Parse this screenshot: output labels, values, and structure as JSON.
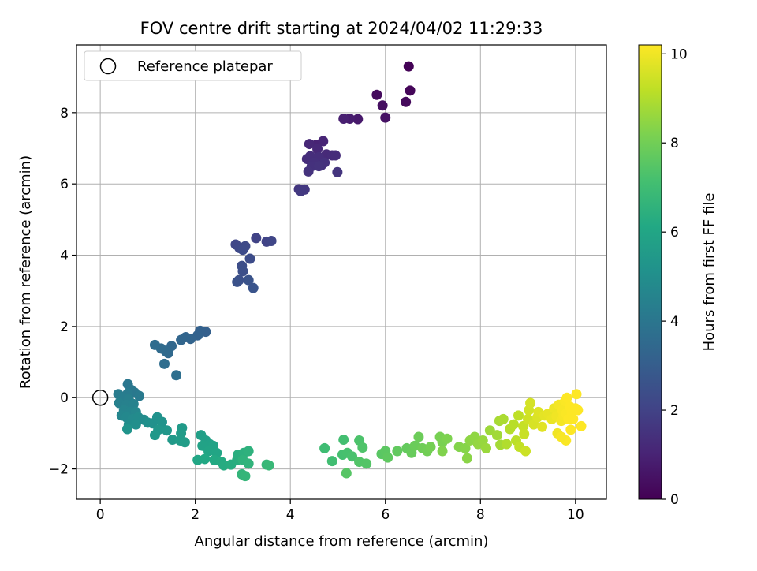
{
  "chart_data": {
    "type": "scatter",
    "title": "FOV centre drift starting at 2024/04/02 11:29:33",
    "xlabel": "Angular distance from reference (arcmin)",
    "ylabel": "Rotation from reference (arcmin)",
    "xlim": [
      -0.5,
      10.65
    ],
    "ylim": [
      -2.85,
      9.9
    ],
    "xticks": [
      0,
      2,
      4,
      6,
      8,
      10
    ],
    "yticks": [
      -2,
      0,
      2,
      4,
      6,
      8
    ],
    "grid": true,
    "legend": {
      "placement": "top-left",
      "entries": [
        {
          "label": "Reference platepar"
        }
      ]
    },
    "reference_point": {
      "x": 0,
      "y": 0
    },
    "colorbar": {
      "label": "Hours from first FF file",
      "range": [
        0,
        10.2
      ],
      "ticks": [
        0,
        2,
        4,
        6,
        8,
        10
      ],
      "colormap": "viridis"
    },
    "points": [
      {
        "x": 6.49,
        "y": 9.3,
        "c": 0.05
      },
      {
        "x": 6.52,
        "y": 8.62,
        "c": 0.15
      },
      {
        "x": 5.82,
        "y": 8.5,
        "c": 0.3
      },
      {
        "x": 5.94,
        "y": 8.2,
        "c": 0.4
      },
      {
        "x": 6.43,
        "y": 8.3,
        "c": 0.25
      },
      {
        "x": 6.0,
        "y": 7.86,
        "c": 0.5
      },
      {
        "x": 5.42,
        "y": 7.82,
        "c": 0.7
      },
      {
        "x": 5.25,
        "y": 7.83,
        "c": 0.8
      },
      {
        "x": 5.12,
        "y": 7.83,
        "c": 0.9
      },
      {
        "x": 4.55,
        "y": 7.1,
        "c": 1.0
      },
      {
        "x": 4.69,
        "y": 7.2,
        "c": 1.05
      },
      {
        "x": 4.4,
        "y": 7.12,
        "c": 1.1
      },
      {
        "x": 4.57,
        "y": 6.98,
        "c": 1.15
      },
      {
        "x": 4.76,
        "y": 6.83,
        "c": 1.2
      },
      {
        "x": 4.88,
        "y": 6.8,
        "c": 1.25
      },
      {
        "x": 4.95,
        "y": 6.8,
        "c": 1.3
      },
      {
        "x": 4.35,
        "y": 6.7,
        "c": 1.3
      },
      {
        "x": 4.42,
        "y": 6.78,
        "c": 1.35
      },
      {
        "x": 4.6,
        "y": 6.75,
        "c": 1.35
      },
      {
        "x": 4.5,
        "y": 6.6,
        "c": 1.4
      },
      {
        "x": 4.65,
        "y": 6.52,
        "c": 1.4
      },
      {
        "x": 4.72,
        "y": 6.6,
        "c": 1.45
      },
      {
        "x": 4.45,
        "y": 6.5,
        "c": 1.45
      },
      {
        "x": 4.6,
        "y": 6.5,
        "c": 1.5
      },
      {
        "x": 4.38,
        "y": 6.35,
        "c": 1.5
      },
      {
        "x": 4.99,
        "y": 6.33,
        "c": 1.55
      },
      {
        "x": 4.18,
        "y": 5.85,
        "c": 1.6
      },
      {
        "x": 4.3,
        "y": 5.84,
        "c": 1.65
      },
      {
        "x": 4.22,
        "y": 5.8,
        "c": 1.7
      },
      {
        "x": 3.28,
        "y": 4.48,
        "c": 2.0
      },
      {
        "x": 3.5,
        "y": 4.38,
        "c": 2.05
      },
      {
        "x": 3.6,
        "y": 4.4,
        "c": 2.1
      },
      {
        "x": 2.85,
        "y": 4.3,
        "c": 2.15
      },
      {
        "x": 2.93,
        "y": 4.2,
        "c": 2.2
      },
      {
        "x": 3.05,
        "y": 4.25,
        "c": 2.25
      },
      {
        "x": 3.0,
        "y": 4.15,
        "c": 2.3
      },
      {
        "x": 3.15,
        "y": 3.9,
        "c": 2.35
      },
      {
        "x": 2.98,
        "y": 3.7,
        "c": 2.4
      },
      {
        "x": 3.0,
        "y": 3.55,
        "c": 2.45
      },
      {
        "x": 2.92,
        "y": 3.3,
        "c": 2.5
      },
      {
        "x": 2.88,
        "y": 3.25,
        "c": 2.55
      },
      {
        "x": 3.12,
        "y": 3.3,
        "c": 2.6
      },
      {
        "x": 3.22,
        "y": 3.08,
        "c": 2.65
      },
      {
        "x": 2.22,
        "y": 1.85,
        "c": 3.1
      },
      {
        "x": 2.1,
        "y": 1.88,
        "c": 3.15
      },
      {
        "x": 2.05,
        "y": 1.75,
        "c": 3.2
      },
      {
        "x": 1.9,
        "y": 1.65,
        "c": 3.25
      },
      {
        "x": 1.8,
        "y": 1.7,
        "c": 3.3
      },
      {
        "x": 1.7,
        "y": 1.62,
        "c": 3.35
      },
      {
        "x": 1.5,
        "y": 1.45,
        "c": 3.4
      },
      {
        "x": 1.43,
        "y": 1.25,
        "c": 3.45
      },
      {
        "x": 1.38,
        "y": 1.3,
        "c": 3.5
      },
      {
        "x": 1.28,
        "y": 1.38,
        "c": 3.55
      },
      {
        "x": 1.15,
        "y": 1.48,
        "c": 3.6
      },
      {
        "x": 1.35,
        "y": 0.95,
        "c": 3.65
      },
      {
        "x": 1.6,
        "y": 0.63,
        "c": 3.7
      },
      {
        "x": 0.58,
        "y": 0.38,
        "c": 4.0
      },
      {
        "x": 0.65,
        "y": 0.22,
        "c": 4.05
      },
      {
        "x": 0.72,
        "y": 0.15,
        "c": 4.1
      },
      {
        "x": 0.82,
        "y": 0.05,
        "c": 4.15
      },
      {
        "x": 0.58,
        "y": 0.12,
        "c": 4.2
      },
      {
        "x": 0.38,
        "y": 0.1,
        "c": 4.25
      },
      {
        "x": 0.48,
        "y": 0.0,
        "c": 4.3
      },
      {
        "x": 0.6,
        "y": -0.05,
        "c": 4.35
      },
      {
        "x": 0.4,
        "y": -0.15,
        "c": 4.4
      },
      {
        "x": 0.55,
        "y": -0.2,
        "c": 4.45
      },
      {
        "x": 0.7,
        "y": -0.18,
        "c": 4.5
      },
      {
        "x": 0.5,
        "y": -0.35,
        "c": 4.55
      },
      {
        "x": 0.62,
        "y": -0.4,
        "c": 4.6
      },
      {
        "x": 0.45,
        "y": -0.5,
        "c": 4.65
      },
      {
        "x": 0.75,
        "y": -0.4,
        "c": 4.7
      },
      {
        "x": 0.55,
        "y": -0.55,
        "c": 4.75
      },
      {
        "x": 0.68,
        "y": -0.6,
        "c": 4.8
      },
      {
        "x": 0.8,
        "y": -0.55,
        "c": 4.85
      },
      {
        "x": 0.92,
        "y": -0.62,
        "c": 4.9
      },
      {
        "x": 0.6,
        "y": -0.75,
        "c": 4.95
      },
      {
        "x": 0.75,
        "y": -0.75,
        "c": 5.0
      },
      {
        "x": 1.0,
        "y": -0.7,
        "c": 5.05
      },
      {
        "x": 1.1,
        "y": -0.72,
        "c": 5.1
      },
      {
        "x": 1.2,
        "y": -0.55,
        "c": 5.15
      },
      {
        "x": 1.3,
        "y": -0.68,
        "c": 5.2
      },
      {
        "x": 0.57,
        "y": -0.88,
        "c": 5.25
      },
      {
        "x": 1.22,
        "y": -0.9,
        "c": 5.3
      },
      {
        "x": 1.4,
        "y": -0.92,
        "c": 5.35
      },
      {
        "x": 1.15,
        "y": -1.05,
        "c": 5.4
      },
      {
        "x": 1.52,
        "y": -1.18,
        "c": 5.45
      },
      {
        "x": 1.72,
        "y": -0.85,
        "c": 5.5
      },
      {
        "x": 1.7,
        "y": -1.0,
        "c": 5.55
      },
      {
        "x": 1.68,
        "y": -1.2,
        "c": 5.6
      },
      {
        "x": 1.78,
        "y": -1.25,
        "c": 5.65
      },
      {
        "x": 2.12,
        "y": -1.05,
        "c": 5.7
      },
      {
        "x": 2.22,
        "y": -1.2,
        "c": 5.75
      },
      {
        "x": 2.3,
        "y": -1.3,
        "c": 5.8
      },
      {
        "x": 2.15,
        "y": -1.35,
        "c": 5.85
      },
      {
        "x": 2.38,
        "y": -1.35,
        "c": 5.9
      },
      {
        "x": 2.28,
        "y": -1.5,
        "c": 5.95
      },
      {
        "x": 2.45,
        "y": -1.55,
        "c": 6.0
      },
      {
        "x": 2.05,
        "y": -1.75,
        "c": 6.05
      },
      {
        "x": 2.2,
        "y": -1.72,
        "c": 6.1
      },
      {
        "x": 2.4,
        "y": -1.75,
        "c": 6.15
      },
      {
        "x": 2.55,
        "y": -1.8,
        "c": 6.2
      },
      {
        "x": 2.6,
        "y": -1.9,
        "c": 6.25
      },
      {
        "x": 2.75,
        "y": -1.88,
        "c": 6.3
      },
      {
        "x": 2.88,
        "y": -1.75,
        "c": 6.35
      },
      {
        "x": 2.9,
        "y": -1.6,
        "c": 6.4
      },
      {
        "x": 3.02,
        "y": -1.55,
        "c": 6.45
      },
      {
        "x": 3.12,
        "y": -1.5,
        "c": 6.5
      },
      {
        "x": 3.0,
        "y": -1.75,
        "c": 6.55
      },
      {
        "x": 3.12,
        "y": -1.85,
        "c": 6.6
      },
      {
        "x": 2.98,
        "y": -2.15,
        "c": 6.65
      },
      {
        "x": 3.05,
        "y": -2.2,
        "c": 6.7
      },
      {
        "x": 3.5,
        "y": -1.88,
        "c": 6.75
      },
      {
        "x": 3.55,
        "y": -1.9,
        "c": 6.8
      },
      {
        "x": 4.72,
        "y": -1.42,
        "c": 7.0
      },
      {
        "x": 4.88,
        "y": -1.78,
        "c": 7.05
      },
      {
        "x": 5.12,
        "y": -1.18,
        "c": 7.1
      },
      {
        "x": 5.1,
        "y": -1.6,
        "c": 7.15
      },
      {
        "x": 5.2,
        "y": -1.55,
        "c": 7.2
      },
      {
        "x": 5.3,
        "y": -1.65,
        "c": 7.25
      },
      {
        "x": 5.45,
        "y": -1.2,
        "c": 7.3
      },
      {
        "x": 5.52,
        "y": -1.4,
        "c": 7.35
      },
      {
        "x": 5.45,
        "y": -1.8,
        "c": 7.4
      },
      {
        "x": 5.6,
        "y": -1.85,
        "c": 7.45
      },
      {
        "x": 5.18,
        "y": -2.12,
        "c": 7.5
      },
      {
        "x": 5.92,
        "y": -1.58,
        "c": 7.55
      },
      {
        "x": 6.0,
        "y": -1.5,
        "c": 7.6
      },
      {
        "x": 6.05,
        "y": -1.68,
        "c": 7.65
      },
      {
        "x": 6.25,
        "y": -1.5,
        "c": 7.7
      },
      {
        "x": 6.45,
        "y": -1.42,
        "c": 7.75
      },
      {
        "x": 6.55,
        "y": -1.55,
        "c": 7.8
      },
      {
        "x": 6.62,
        "y": -1.35,
        "c": 7.85
      },
      {
        "x": 6.7,
        "y": -1.1,
        "c": 7.9
      },
      {
        "x": 6.78,
        "y": -1.42,
        "c": 7.95
      },
      {
        "x": 6.88,
        "y": -1.5,
        "c": 8.0
      },
      {
        "x": 6.95,
        "y": -1.38,
        "c": 8.05
      },
      {
        "x": 7.15,
        "y": -1.1,
        "c": 8.1
      },
      {
        "x": 7.2,
        "y": -1.25,
        "c": 8.15
      },
      {
        "x": 7.3,
        "y": -1.15,
        "c": 8.2
      },
      {
        "x": 7.2,
        "y": -1.5,
        "c": 8.25
      },
      {
        "x": 7.55,
        "y": -1.38,
        "c": 8.3
      },
      {
        "x": 7.68,
        "y": -1.42,
        "c": 8.35
      },
      {
        "x": 7.72,
        "y": -1.7,
        "c": 8.4
      },
      {
        "x": 7.78,
        "y": -1.2,
        "c": 8.45
      },
      {
        "x": 7.88,
        "y": -1.1,
        "c": 8.5
      },
      {
        "x": 7.95,
        "y": -1.3,
        "c": 8.55
      },
      {
        "x": 8.05,
        "y": -1.2,
        "c": 8.6
      },
      {
        "x": 8.12,
        "y": -1.42,
        "c": 8.65
      },
      {
        "x": 8.2,
        "y": -0.92,
        "c": 8.7
      },
      {
        "x": 8.35,
        "y": -1.05,
        "c": 8.75
      },
      {
        "x": 8.42,
        "y": -1.32,
        "c": 8.8
      },
      {
        "x": 8.4,
        "y": -0.65,
        "c": 8.85
      },
      {
        "x": 8.48,
        "y": -0.6,
        "c": 8.9
      },
      {
        "x": 8.55,
        "y": -1.3,
        "c": 9.0
      },
      {
        "x": 8.62,
        "y": -0.88,
        "c": 9.05
      },
      {
        "x": 8.7,
        "y": -0.75,
        "c": 9.1
      },
      {
        "x": 8.75,
        "y": -1.2,
        "c": 9.15
      },
      {
        "x": 8.8,
        "y": -0.5,
        "c": 9.2
      },
      {
        "x": 8.82,
        "y": -1.38,
        "c": 9.25
      },
      {
        "x": 8.9,
        "y": -0.8,
        "c": 9.3
      },
      {
        "x": 8.92,
        "y": -1.02,
        "c": 9.35
      },
      {
        "x": 8.95,
        "y": -1.5,
        "c": 9.4
      },
      {
        "x": 9.0,
        "y": -0.6,
        "c": 9.45
      },
      {
        "x": 9.02,
        "y": -0.35,
        "c": 9.5
      },
      {
        "x": 9.05,
        "y": -0.15,
        "c": 9.55
      },
      {
        "x": 9.12,
        "y": -0.75,
        "c": 9.6
      },
      {
        "x": 9.2,
        "y": -0.55,
        "c": 9.65
      },
      {
        "x": 9.22,
        "y": -0.4,
        "c": 9.7
      },
      {
        "x": 9.3,
        "y": -0.82,
        "c": 9.75
      },
      {
        "x": 9.35,
        "y": -0.5,
        "c": 9.8
      },
      {
        "x": 9.42,
        "y": -0.45,
        "c": 9.85
      },
      {
        "x": 9.5,
        "y": -0.6,
        "c": 9.9
      },
      {
        "x": 9.55,
        "y": -0.3,
        "c": 9.95
      },
      {
        "x": 9.6,
        "y": -0.52,
        "c": 10.0
      },
      {
        "x": 9.62,
        "y": -1.0,
        "c": 10.0
      },
      {
        "x": 9.65,
        "y": -0.2,
        "c": 10.05
      },
      {
        "x": 9.7,
        "y": -0.65,
        "c": 10.05
      },
      {
        "x": 9.72,
        "y": -0.35,
        "c": 10.1
      },
      {
        "x": 9.75,
        "y": -0.5,
        "c": 10.1
      },
      {
        "x": 9.78,
        "y": -0.1,
        "c": 10.15
      },
      {
        "x": 9.8,
        "y": -0.45,
        "c": 10.15
      },
      {
        "x": 9.82,
        "y": 0.0,
        "c": 10.2
      },
      {
        "x": 9.85,
        "y": -0.6,
        "c": 10.2
      },
      {
        "x": 9.88,
        "y": -0.25,
        "c": 10.2
      },
      {
        "x": 9.9,
        "y": -0.9,
        "c": 10.2
      },
      {
        "x": 9.92,
        "y": -0.4,
        "c": 10.2
      },
      {
        "x": 9.8,
        "y": -1.2,
        "c": 10.15
      },
      {
        "x": 9.7,
        "y": -1.1,
        "c": 10.1
      },
      {
        "x": 10.0,
        "y": -0.3,
        "c": 10.2
      },
      {
        "x": 10.05,
        "y": -0.35,
        "c": 10.2
      },
      {
        "x": 10.02,
        "y": 0.1,
        "c": 10.2
      },
      {
        "x": 10.12,
        "y": -0.8,
        "c": 10.2
      },
      {
        "x": 9.95,
        "y": -0.6,
        "c": 10.2
      }
    ]
  }
}
